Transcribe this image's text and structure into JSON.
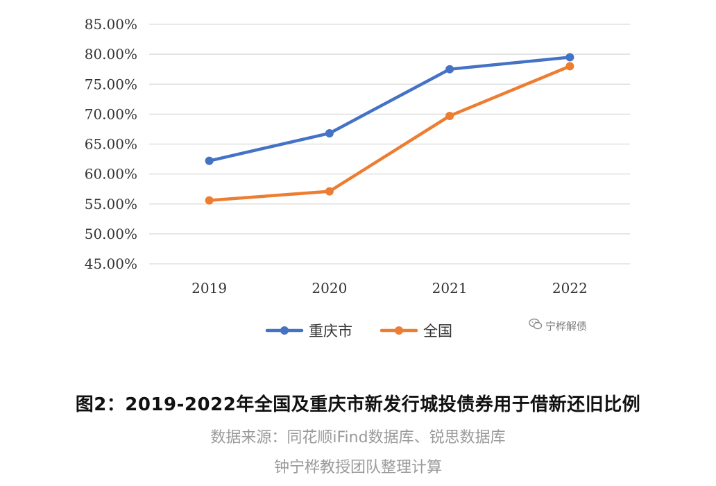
{
  "chart_data": {
    "type": "line",
    "categories": [
      "2019",
      "2020",
      "2021",
      "2022"
    ],
    "series": [
      {
        "name": "重庆市",
        "values": [
          62.2,
          66.8,
          77.5,
          79.5
        ],
        "color": "#4472C4"
      },
      {
        "name": "全国",
        "values": [
          55.6,
          57.1,
          69.7,
          78.0
        ],
        "color": "#ED7D31"
      }
    ],
    "ylim": [
      45,
      85
    ],
    "yticks": [
      85,
      80,
      75,
      70,
      65,
      60,
      55,
      50,
      45
    ],
    "ytick_labels": [
      "85.00%",
      "80.00%",
      "75.00%",
      "70.00%",
      "65.00%",
      "60.00%",
      "55.00%",
      "50.00%",
      "45.00%"
    ],
    "grid": true,
    "legend_position": "bottom"
  },
  "watermark": {
    "icon": "wechat-icon",
    "text": "宁桦解债"
  },
  "caption": {
    "title": "图2：2019-2022年全国及重庆市新发行城投债券用于借新还旧比例",
    "source": "数据来源：同花顺iFind数据库、锐思数据库",
    "credit": "钟宁桦教授团队整理计算"
  }
}
